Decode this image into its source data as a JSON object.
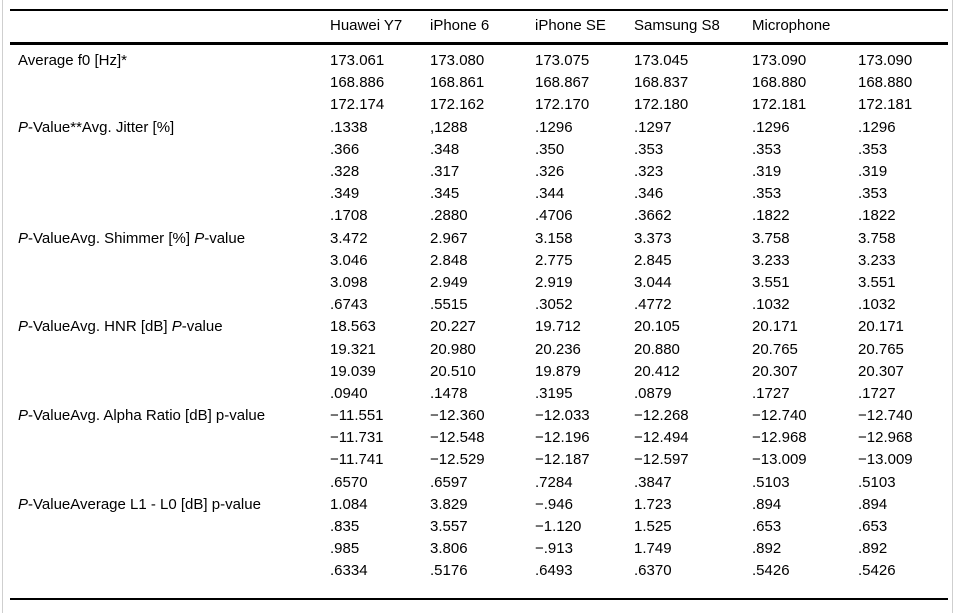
{
  "table": {
    "columns": [
      "",
      "Huawei Y7",
      "iPhone 6",
      "iPhone SE",
      "Samsung S8",
      "Microphone",
      ""
    ],
    "rows": [
      {
        "label": [
          {
            "t": "Average f0 [Hz]*",
            "i": false
          }
        ],
        "values": [
          "173.061",
          "173.080",
          "173.075",
          "173.045",
          "173.090",
          "173.090"
        ]
      },
      {
        "label": [],
        "values": [
          "168.886",
          "168.861",
          "168.867",
          "168.837",
          "168.880",
          "168.880"
        ]
      },
      {
        "label": [],
        "values": [
          "172.174",
          "172.162",
          "172.170",
          "172.180",
          "172.181",
          "172.181"
        ]
      },
      {
        "label": [
          {
            "t": "P",
            "i": true
          },
          {
            "t": "-Value**Avg. Jitter [%]",
            "i": false
          }
        ],
        "values": [
          ".1338",
          ",1288",
          ".1296",
          ".1297",
          ".1296",
          ".1296"
        ]
      },
      {
        "label": [],
        "values": [
          ".366",
          ".348",
          ".350",
          ".353",
          ".353",
          ".353"
        ]
      },
      {
        "label": [],
        "values": [
          ".328",
          ".317",
          ".326",
          ".323",
          ".319",
          ".319"
        ]
      },
      {
        "label": [],
        "values": [
          ".349",
          ".345",
          ".344",
          ".346",
          ".353",
          ".353"
        ]
      },
      {
        "label": [],
        "values": [
          ".1708",
          ".2880",
          ".4706",
          ".3662",
          ".1822",
          ".1822"
        ]
      },
      {
        "label": [
          {
            "t": "P",
            "i": true
          },
          {
            "t": "-ValueAvg. Shimmer [%] ",
            "i": false
          },
          {
            "t": "P",
            "i": true
          },
          {
            "t": "-value",
            "i": false
          }
        ],
        "values": [
          "3.472",
          "2.967",
          "3.158",
          "3.373",
          "3.758",
          "3.758"
        ]
      },
      {
        "label": [],
        "values": [
          "3.046",
          "2.848",
          "2.775",
          "2.845",
          "3.233",
          "3.233"
        ]
      },
      {
        "label": [],
        "values": [
          "3.098",
          "2.949",
          "2.919",
          "3.044",
          "3.551",
          "3.551"
        ]
      },
      {
        "label": [],
        "values": [
          ".6743",
          ".5515",
          ".3052",
          ".4772",
          ".1032",
          ".1032"
        ]
      },
      {
        "label": [
          {
            "t": "P",
            "i": true
          },
          {
            "t": "-ValueAvg. HNR [dB] ",
            "i": false
          },
          {
            "t": "P",
            "i": true
          },
          {
            "t": "-value",
            "i": false
          }
        ],
        "values": [
          "18.563",
          "20.227",
          "19.712",
          "20.105",
          "20.171",
          "20.171"
        ]
      },
      {
        "label": [],
        "values": [
          "19.321",
          "20.980",
          "20.236",
          "20.880",
          "20.765",
          "20.765"
        ]
      },
      {
        "label": [],
        "values": [
          "19.039",
          "20.510",
          "19.879",
          "20.412",
          "20.307",
          "20.307"
        ]
      },
      {
        "label": [],
        "values": [
          ".0940",
          ".1478",
          ".3195",
          ".0879",
          ".1727",
          ".1727"
        ]
      },
      {
        "label": [
          {
            "t": "P",
            "i": true
          },
          {
            "t": "-ValueAvg. Alpha Ratio [dB] p-value",
            "i": false
          }
        ],
        "values": [
          "−11.551",
          "−12.360",
          "−12.033",
          "−12.268",
          "−12.740",
          "−12.740"
        ]
      },
      {
        "label": [],
        "values": [
          "−11.731",
          "−12.548",
          "−12.196",
          "−12.494",
          "−12.968",
          "−12.968"
        ]
      },
      {
        "label": [],
        "values": [
          "−11.741",
          "−12.529",
          "−12.187",
          "−12.597",
          "−13.009",
          "−13.009"
        ]
      },
      {
        "label": [],
        "values": [
          ".6570",
          ".6597",
          ".7284",
          ".3847",
          ".5103",
          ".5103"
        ]
      },
      {
        "label": [
          {
            "t": "P",
            "i": true
          },
          {
            "t": "-ValueAverage L1 - L0 [dB] p-value",
            "i": false
          }
        ],
        "values": [
          "1.084",
          "3.829",
          "−.946",
          "1.723",
          ".894",
          ".894"
        ]
      },
      {
        "label": [],
        "values": [
          ".835",
          "3.557",
          "−1.120",
          "1.525",
          ".653",
          ".653"
        ]
      },
      {
        "label": [],
        "values": [
          ".985",
          "3.806",
          "−.913",
          "1.749",
          ".892",
          ".892"
        ]
      },
      {
        "label": [],
        "values": [
          ".6334",
          ".5176",
          ".6493",
          ".6370",
          ".5426",
          ".5426"
        ]
      }
    ]
  }
}
